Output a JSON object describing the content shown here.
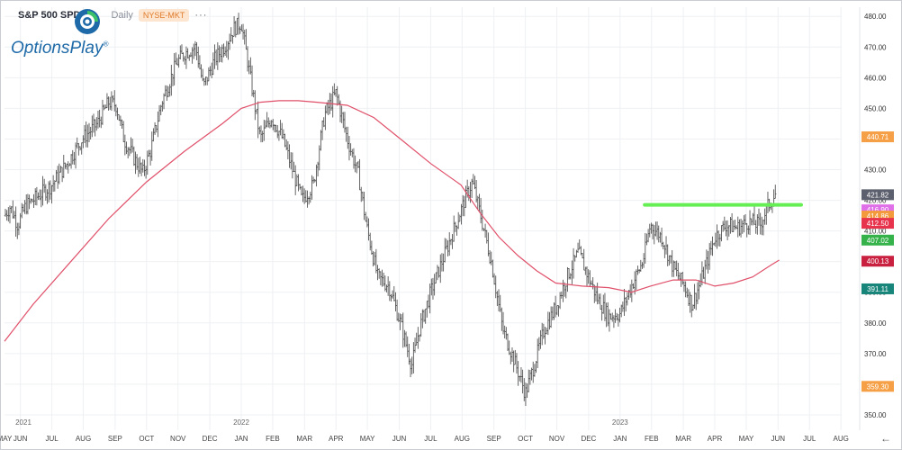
{
  "header": {
    "symbol": "S&P 500 SPDR",
    "timeframe": "Daily",
    "exchange": "NYSE-MKT",
    "more": "···"
  },
  "brand": {
    "name": "OptionsPlay",
    "mark": "®"
  },
  "nav": {
    "scroll_arrow": "←"
  },
  "colors": {
    "bars": "#555555",
    "ma": "#e0506a",
    "resistance": "#66ee55",
    "grid": "#eef0f3"
  },
  "chart_data": {
    "type": "ohlc",
    "ylim": [
      345,
      483
    ],
    "yticks": [
      350,
      360,
      370,
      380,
      390,
      400,
      410,
      420,
      430,
      440,
      450,
      460,
      470,
      480
    ],
    "x_range": [
      2021.375,
      2023.585
    ],
    "x_ticks": [
      {
        "label": "MAY",
        "t": 2021.375
      },
      {
        "label": "JUN",
        "t": 2021.417
      },
      {
        "label": "JUL",
        "t": 2021.5
      },
      {
        "label": "AUG",
        "t": 2021.583
      },
      {
        "label": "SEP",
        "t": 2021.667
      },
      {
        "label": "OCT",
        "t": 2021.75
      },
      {
        "label": "NOV",
        "t": 2021.833
      },
      {
        "label": "DEC",
        "t": 2021.917
      },
      {
        "label": "JAN",
        "t": 2022.0
      },
      {
        "label": "FEB",
        "t": 2022.083
      },
      {
        "label": "MAR",
        "t": 2022.167
      },
      {
        "label": "APR",
        "t": 2022.25
      },
      {
        "label": "MAY",
        "t": 2022.333
      },
      {
        "label": "JUN",
        "t": 2022.417
      },
      {
        "label": "JUL",
        "t": 2022.5
      },
      {
        "label": "AUG",
        "t": 2022.583
      },
      {
        "label": "SEP",
        "t": 2022.667
      },
      {
        "label": "OCT",
        "t": 2022.75
      },
      {
        "label": "NOV",
        "t": 2022.833
      },
      {
        "label": "DEC",
        "t": 2022.917
      },
      {
        "label": "JAN",
        "t": 2023.0
      },
      {
        "label": "FEB",
        "t": 2023.083
      },
      {
        "label": "MAR",
        "t": 2023.167
      },
      {
        "label": "APR",
        "t": 2023.25
      },
      {
        "label": "MAY",
        "t": 2023.333
      },
      {
        "label": "JUN",
        "t": 2023.417
      },
      {
        "label": "JUL",
        "t": 2023.5
      },
      {
        "label": "AUG",
        "t": 2023.583
      }
    ],
    "year_labels": [
      {
        "label": "2021",
        "t": 2021.0
      },
      {
        "label": "2022",
        "t": 2022.0
      },
      {
        "label": "2023",
        "t": 2023.0
      }
    ],
    "close_path": [
      [
        2021.375,
        415
      ],
      [
        2021.39,
        418
      ],
      [
        2021.41,
        412
      ],
      [
        2021.43,
        418
      ],
      [
        2021.45,
        420
      ],
      [
        2021.5,
        425
      ],
      [
        2021.54,
        432
      ],
      [
        2021.58,
        440
      ],
      [
        2021.62,
        445
      ],
      [
        2021.65,
        452
      ],
      [
        2021.67,
        451
      ],
      [
        2021.69,
        440
      ],
      [
        2021.72,
        433
      ],
      [
        2021.74,
        429
      ],
      [
        2021.76,
        436
      ],
      [
        2021.79,
        452
      ],
      [
        2021.83,
        465
      ],
      [
        2021.85,
        468
      ],
      [
        2021.88,
        470
      ],
      [
        2021.9,
        457
      ],
      [
        2021.93,
        466
      ],
      [
        2021.96,
        471
      ],
      [
        2021.98,
        476
      ],
      [
        2022.0,
        478
      ],
      [
        2022.02,
        463
      ],
      [
        2022.05,
        440
      ],
      [
        2022.08,
        447
      ],
      [
        2022.11,
        440
      ],
      [
        2022.13,
        432
      ],
      [
        2022.16,
        420
      ],
      [
        2022.19,
        425
      ],
      [
        2022.22,
        448
      ],
      [
        2022.25,
        455
      ],
      [
        2022.28,
        440
      ],
      [
        2022.31,
        428
      ],
      [
        2022.33,
        412
      ],
      [
        2022.36,
        395
      ],
      [
        2022.39,
        392
      ],
      [
        2022.42,
        380
      ],
      [
        2022.45,
        366
      ],
      [
        2022.47,
        378
      ],
      [
        2022.5,
        390
      ],
      [
        2022.53,
        400
      ],
      [
        2022.56,
        410
      ],
      [
        2022.59,
        420
      ],
      [
        2022.61,
        426
      ],
      [
        2022.63,
        416
      ],
      [
        2022.66,
        400
      ],
      [
        2022.69,
        378
      ],
      [
        2022.72,
        368
      ],
      [
        2022.75,
        357
      ],
      [
        2022.77,
        365
      ],
      [
        2022.8,
        378
      ],
      [
        2022.83,
        385
      ],
      [
        2022.86,
        395
      ],
      [
        2022.89,
        403
      ],
      [
        2022.91,
        397
      ],
      [
        2022.94,
        388
      ],
      [
        2022.97,
        382
      ],
      [
        2023.0,
        383
      ],
      [
        2023.03,
        392
      ],
      [
        2023.06,
        400
      ],
      [
        2023.08,
        412
      ],
      [
        2023.11,
        408
      ],
      [
        2023.14,
        398
      ],
      [
        2023.17,
        392
      ],
      [
        2023.19,
        386
      ],
      [
        2023.22,
        396
      ],
      [
        2023.25,
        408
      ],
      [
        2023.28,
        412
      ],
      [
        2023.31,
        411
      ],
      [
        2023.34,
        413
      ],
      [
        2023.37,
        412
      ],
      [
        2023.39,
        418
      ],
      [
        2023.41,
        422
      ]
    ],
    "moving_average": [
      [
        2021.375,
        374
      ],
      [
        2021.45,
        386
      ],
      [
        2021.55,
        400
      ],
      [
        2021.65,
        414
      ],
      [
        2021.75,
        426
      ],
      [
        2021.85,
        436
      ],
      [
        2021.95,
        445
      ],
      [
        2022.0,
        450
      ],
      [
        2022.05,
        452
      ],
      [
        2022.1,
        452.5
      ],
      [
        2022.15,
        452.5
      ],
      [
        2022.2,
        452
      ],
      [
        2022.28,
        451
      ],
      [
        2022.35,
        447
      ],
      [
        2022.42,
        440
      ],
      [
        2022.5,
        432
      ],
      [
        2022.58,
        425
      ],
      [
        2022.63,
        416
      ],
      [
        2022.68,
        408
      ],
      [
        2022.73,
        402
      ],
      [
        2022.78,
        397
      ],
      [
        2022.83,
        393
      ],
      [
        2022.9,
        392
      ],
      [
        2022.97,
        391.5
      ],
      [
        2023.03,
        390
      ],
      [
        2023.08,
        392
      ],
      [
        2023.14,
        394
      ],
      [
        2023.2,
        394
      ],
      [
        2023.25,
        392
      ],
      [
        2023.3,
        393
      ],
      [
        2023.35,
        395
      ],
      [
        2023.4,
        399
      ],
      [
        2023.42,
        400.5
      ]
    ],
    "resistance_line": {
      "value": 418.5,
      "t_start": 2023.065,
      "t_end": 2023.478
    },
    "price_labels": [
      {
        "value": 440.71,
        "text": "440.71",
        "color": "#f5a046"
      },
      {
        "value": 421.82,
        "text": "421.82",
        "color": "#5c5f6d"
      },
      {
        "value": 416.9,
        "text": "416.90",
        "color": "#e070e8"
      },
      {
        "value": 414.86,
        "text": "414.86",
        "color": "#f29a3c"
      },
      {
        "value": 412.5,
        "text": "412.50",
        "color": "#e7334c"
      },
      {
        "value": 407.02,
        "text": "407.02",
        "color": "#35b34a"
      },
      {
        "value": 400.13,
        "text": "400.13",
        "color": "#c9203f"
      },
      {
        "value": 391.11,
        "text": "391.11",
        "color": "#17857a"
      },
      {
        "value": 359.3,
        "text": "359.30",
        "color": "#f5a046"
      }
    ]
  }
}
